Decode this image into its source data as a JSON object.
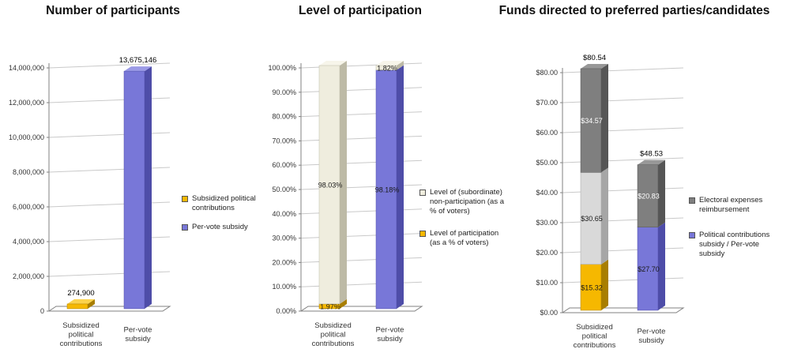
{
  "page": {
    "background": "#FFFFFF"
  },
  "colors": {
    "gold": {
      "front": "#F6B800",
      "top": "#FBD34C",
      "side": "#A87E00"
    },
    "blue": {
      "front": "#7877D8",
      "top": "#9B9AE6",
      "side": "#4E4DA8"
    },
    "cream": {
      "front": "#EFEDDE",
      "top": "#F7F5EA",
      "side": "#BDBAA6"
    },
    "lightgray": {
      "front": "#D9D9D9",
      "top": "#E9E9E9",
      "side": "#A6A6A6"
    },
    "darkgray": {
      "front": "#7F7F7F",
      "top": "#989898",
      "side": "#565656"
    }
  },
  "chart_data": [
    {
      "type": "bar",
      "style": "3d-column",
      "title": "Number of participants",
      "legend_position": "right",
      "y_axis": {
        "min": 0,
        "max": 14000000,
        "tick_labels": [
          "0",
          "2,000,000",
          "4,000,000",
          "6,000,000",
          "8,000,000",
          "10,000,000",
          "12,000,000",
          "14,000,000"
        ]
      },
      "categories": [
        "Subsidized\npolitical\ncontributions",
        "Per-vote\nsubsidy"
      ],
      "bars": [
        {
          "total_label": "274,900",
          "segments": [
            {
              "value": 274900,
              "color": "gold"
            }
          ]
        },
        {
          "total_label": "13,675,146",
          "segments": [
            {
              "value": 13675146,
              "color": "blue"
            }
          ]
        }
      ],
      "legend": [
        {
          "label": "Subsidized political\ncontributions",
          "color": "gold"
        },
        {
          "label": "Per-vote subsidy",
          "color": "blue"
        }
      ]
    },
    {
      "type": "bar",
      "style": "3d-stacked-column",
      "title": "Level of participation",
      "legend_position": "right",
      "y_axis": {
        "min": 0,
        "max": 100,
        "tick_labels": [
          "0.00%",
          "10.00%",
          "20.00%",
          "30.00%",
          "40.00%",
          "50.00%",
          "60.00%",
          "70.00%",
          "80.00%",
          "90.00%",
          "100.00%"
        ]
      },
      "categories": [
        "Subsidized\npolitical\ncontributions",
        "Per-vote\nsubsidy"
      ],
      "bars": [
        {
          "segments": [
            {
              "value": 1.97,
              "color": "gold",
              "label": "1.97%"
            },
            {
              "value": 98.03,
              "color": "cream",
              "label": "98.03%"
            }
          ]
        },
        {
          "segments": [
            {
              "value": 98.18,
              "color": "blue",
              "label": "98.18%"
            },
            {
              "value": 1.82,
              "color": "cream",
              "label": "1.82%"
            }
          ]
        }
      ],
      "legend": [
        {
          "label": "Level of (subordinate)\nnon-participation (as a\n% of voters)",
          "color": "cream"
        },
        {
          "label": "Level of participation\n(as a % of voters)",
          "color": "gold"
        }
      ]
    },
    {
      "type": "bar",
      "style": "3d-stacked-column",
      "title": "Funds directed to preferred parties/candidates",
      "legend_position": "right",
      "y_axis": {
        "min": 0,
        "max": 80,
        "tick_labels": [
          "$0.00",
          "$10.00",
          "$20.00",
          "$30.00",
          "$40.00",
          "$50.00",
          "$60.00",
          "$70.00",
          "$80.00"
        ]
      },
      "categories": [
        "Subsidized\npolitical\ncontributions",
        "Per-vote\nsubsidy"
      ],
      "bars": [
        {
          "total_label": "$80.54",
          "segments": [
            {
              "value": 15.32,
              "color": "gold",
              "label": "$15.32"
            },
            {
              "value": 30.65,
              "color": "lightgray",
              "label": "$30.65"
            },
            {
              "value": 34.57,
              "color": "darkgray",
              "label": "$34.57",
              "label_color": "#FFFFFF"
            }
          ]
        },
        {
          "total_label": "$48.53",
          "segments": [
            {
              "value": 27.7,
              "color": "blue",
              "label": "$27.70"
            },
            {
              "value": 20.83,
              "color": "darkgray",
              "label": "$20.83",
              "label_color": "#FFFFFF"
            }
          ]
        }
      ],
      "legend": [
        {
          "label": "Electoral expenses\nreimbursement",
          "color": "darkgray"
        },
        {
          "label": "Political contributions\nsubsidy / Per-vote\nsubsidy",
          "color": "blue"
        }
      ]
    }
  ]
}
